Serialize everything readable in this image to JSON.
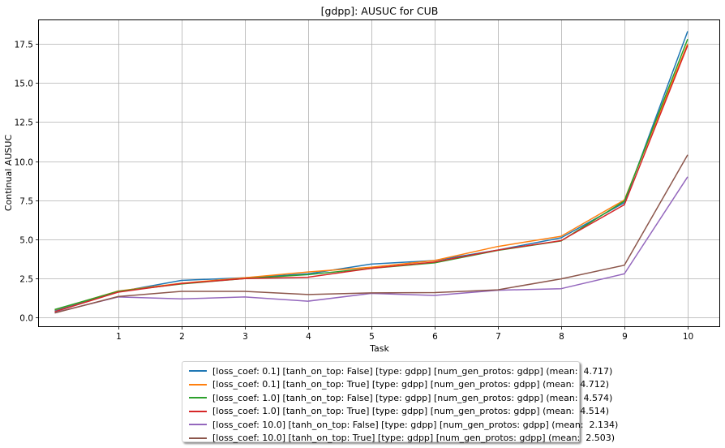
{
  "chart_data": {
    "type": "line",
    "title": "[gdpp]: AUSUC for CUB",
    "xlabel": "Task",
    "ylabel": "Continual AUSUC",
    "xlim": [
      -0.25,
      10.5
    ],
    "ylim": [
      -0.55,
      19.0
    ],
    "x_ticks": [
      1,
      2,
      3,
      4,
      5,
      6,
      7,
      8,
      9,
      10
    ],
    "y_ticks": [
      0.0,
      2.5,
      5.0,
      7.5,
      10.0,
      12.5,
      15.0,
      17.5
    ],
    "y_tick_labels": [
      "0.0",
      "2.5",
      "5.0",
      "7.5",
      "10.0",
      "12.5",
      "15.0",
      "17.5"
    ],
    "grid": true,
    "legend_position": "below",
    "x": [
      0,
      1,
      2,
      3,
      4,
      5,
      6,
      7,
      8,
      9,
      10
    ],
    "series": [
      {
        "name": "[loss_coef: 0.1] [tanh_on_top: False] [type: gdpp] [num_gen_protos: gdpp] (mean:  4.717)",
        "color": "#1f77b4",
        "values": [
          0.45,
          1.65,
          2.38,
          2.55,
          2.8,
          3.42,
          3.65,
          4.32,
          5.1,
          7.35,
          18.3
        ]
      },
      {
        "name": "[loss_coef: 0.1] [tanh_on_top: True] [type: gdpp] [num_gen_protos: gdpp] (mean:  4.712)",
        "color": "#ff7f0e",
        "values": [
          0.5,
          1.7,
          2.2,
          2.55,
          2.92,
          3.22,
          3.65,
          4.55,
          5.2,
          7.52,
          17.5
        ]
      },
      {
        "name": "[loss_coef: 1.0] [tanh_on_top: False] [type: gdpp] [num_gen_protos: gdpp] (mean:  4.574)",
        "color": "#2ca02c",
        "values": [
          0.52,
          1.68,
          2.15,
          2.5,
          2.75,
          3.15,
          3.5,
          4.3,
          4.9,
          7.45,
          17.8
        ]
      },
      {
        "name": "[loss_coef: 1.0] [tanh_on_top: True] [type: gdpp] [num_gen_protos: gdpp] (mean:  4.514)",
        "color": "#d62728",
        "values": [
          0.38,
          1.63,
          2.18,
          2.5,
          2.58,
          3.15,
          3.55,
          4.32,
          4.92,
          7.22,
          17.4
        ]
      },
      {
        "name": "[loss_coef: 10.0] [tanh_on_top: False] [type: gdpp] [num_gen_protos: gdpp] (mean:  2.134)",
        "color": "#9467bd",
        "values": [
          0.32,
          1.32,
          1.2,
          1.32,
          1.05,
          1.55,
          1.42,
          1.75,
          1.85,
          2.8,
          9.0
        ]
      },
      {
        "name": "[loss_coef: 10.0] [tanh_on_top: True] [type: gdpp] [num_gen_protos: gdpp] (mean:  2.503)",
        "color": "#8c564b",
        "values": [
          0.3,
          1.35,
          1.68,
          1.68,
          1.48,
          1.58,
          1.6,
          1.78,
          2.48,
          3.35,
          10.4
        ]
      }
    ]
  }
}
